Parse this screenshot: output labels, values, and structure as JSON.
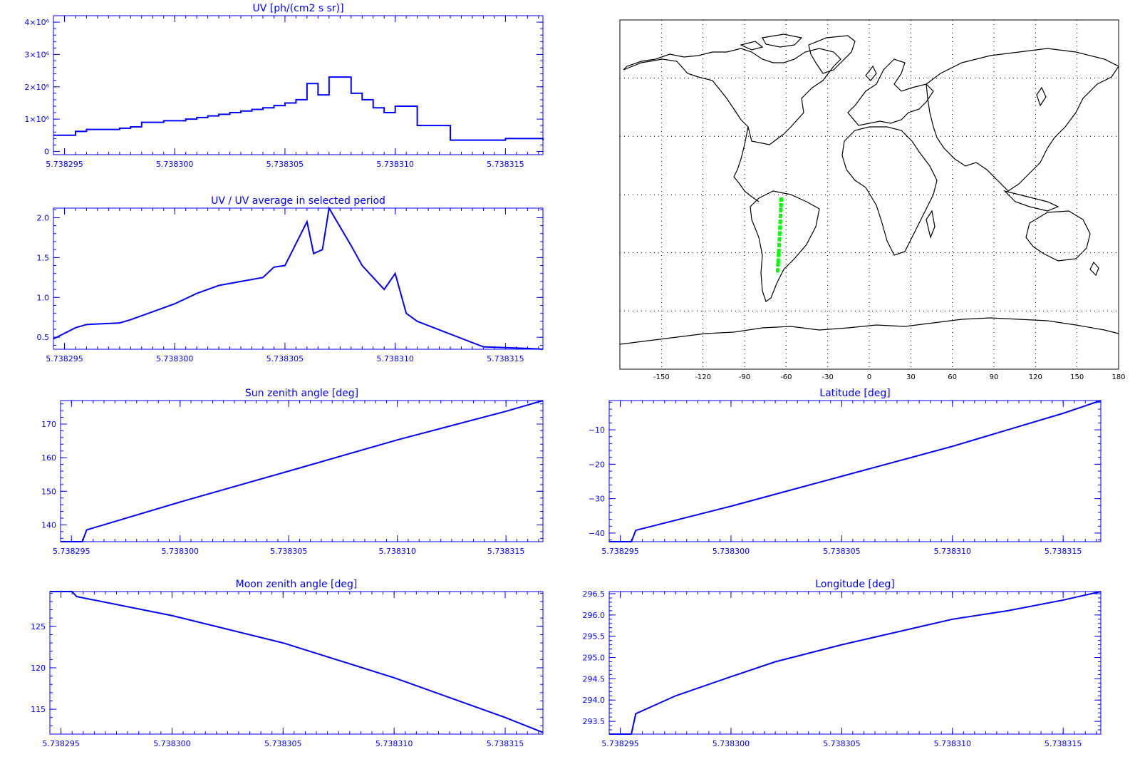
{
  "colors": {
    "axis": "#0000ff",
    "line": "#0000ff",
    "map": "#000000",
    "track": "#00ff00"
  },
  "chart_data": [
    {
      "id": "uv",
      "type": "line",
      "step": true,
      "title": "UV [ph/(cm2 s sr)]",
      "xlim": [
        5.7382945,
        5.7383167
      ],
      "ylim": [
        -100000,
        4200000
      ],
      "xticks": [
        5.738295,
        5.7383,
        5.738305,
        5.73831,
        5.738315
      ],
      "xtick_labels": [
        "5.738295",
        "5.738300",
        "5.738305",
        "5.738310",
        "5.738315"
      ],
      "yticks": [
        0,
        1000000,
        2000000,
        3000000,
        4000000
      ],
      "ytick_labels": [
        "0",
        "1×10⁶",
        "2×10⁶",
        "3×10⁶",
        "4×10⁶"
      ],
      "x": [
        5.7382945,
        5.7382955,
        5.738296,
        5.7382975,
        5.738298,
        5.7382985,
        5.7382995,
        5.7383005,
        5.738301,
        5.7383015,
        5.738302,
        5.7383025,
        5.738303,
        5.7383035,
        5.738304,
        5.7383045,
        5.738305,
        5.7383055,
        5.738306,
        5.7383065,
        5.738307,
        5.738308,
        5.7383085,
        5.738309,
        5.7383095,
        5.73831,
        5.738311,
        5.7383125,
        5.738315,
        5.7383167
      ],
      "y": [
        500000,
        620000,
        680000,
        720000,
        760000,
        900000,
        950000,
        1000000,
        1050000,
        1100000,
        1150000,
        1200000,
        1250000,
        1300000,
        1350000,
        1420000,
        1500000,
        1600000,
        2100000,
        1750000,
        2300000,
        1800000,
        1600000,
        1350000,
        1200000,
        1400000,
        800000,
        350000,
        400000,
        350000
      ]
    },
    {
      "id": "uv_ratio",
      "type": "line",
      "title": "UV / UV average in selected period",
      "xlim": [
        5.7382945,
        5.7383167
      ],
      "ylim": [
        0.35,
        2.12
      ],
      "xticks": [
        5.738295,
        5.7383,
        5.738305,
        5.73831,
        5.738315
      ],
      "xtick_labels": [
        "5.738295",
        "5.738300",
        "5.738305",
        "5.738310",
        "5.738315"
      ],
      "yticks": [
        0.5,
        1.0,
        1.5,
        2.0
      ],
      "ytick_labels": [
        "0.5",
        "1.0",
        "1.5",
        "2.0"
      ],
      "x": [
        5.7382945,
        5.7382955,
        5.738296,
        5.7382975,
        5.738298,
        5.738299,
        5.7383,
        5.738301,
        5.738302,
        5.738303,
        5.738304,
        5.7383045,
        5.738305,
        5.738306,
        5.7383063,
        5.7383067,
        5.738307,
        5.738308,
        5.7383085,
        5.738309,
        5.7383095,
        5.73831,
        5.7383105,
        5.738311,
        5.738314,
        5.738316,
        5.7383167
      ],
      "y": [
        0.48,
        0.62,
        0.66,
        0.68,
        0.72,
        0.82,
        0.92,
        1.05,
        1.15,
        1.2,
        1.25,
        1.38,
        1.4,
        1.95,
        1.55,
        1.6,
        2.12,
        1.65,
        1.4,
        1.25,
        1.1,
        1.3,
        0.8,
        0.7,
        0.38,
        0.36,
        0.35
      ]
    },
    {
      "id": "sza",
      "type": "line",
      "title": "Sun zenith angle [deg]",
      "xlim": [
        5.7382945,
        5.7383167
      ],
      "ylim": [
        135,
        177
      ],
      "xticks": [
        5.738295,
        5.7383,
        5.738305,
        5.73831,
        5.738315
      ],
      "xtick_labels": [
        "5.738295",
        "5.738300",
        "5.738305",
        "5.738310",
        "5.738315"
      ],
      "yticks": [
        140,
        150,
        160,
        170
      ],
      "ytick_labels": [
        "140",
        "150",
        "160",
        "170"
      ],
      "x": [
        5.7382945,
        5.7382955,
        5.7382957,
        5.7383,
        5.738305,
        5.73831,
        5.738315,
        5.7383167
      ],
      "y": [
        135,
        135,
        138.5,
        146.8,
        156,
        165.3,
        173.8,
        177
      ]
    },
    {
      "id": "mza",
      "type": "line",
      "title": "Moon zenith angle [deg]",
      "xlim": [
        5.7382945,
        5.7383167
      ],
      "ylim": [
        112,
        129.2
      ],
      "xticks": [
        5.738295,
        5.7383,
        5.738305,
        5.73831,
        5.738315
      ],
      "xtick_labels": [
        "5.738295",
        "5.738300",
        "5.738305",
        "5.738310",
        "5.738315"
      ],
      "yticks": [
        115,
        120,
        125
      ],
      "ytick_labels": [
        "115",
        "120",
        "125"
      ],
      "x": [
        5.7382945,
        5.7382955,
        5.7382957,
        5.7383,
        5.738305,
        5.73831,
        5.738315,
        5.7383167
      ],
      "y": [
        129.2,
        129.2,
        128.6,
        126.3,
        123,
        118.8,
        114,
        112.2
      ]
    },
    {
      "id": "lat",
      "type": "line",
      "title": "Latitude [deg]",
      "xlim": [
        5.7382945,
        5.7383167
      ],
      "ylim": [
        -42.5,
        -1.5
      ],
      "xticks": [
        5.738295,
        5.7383,
        5.738305,
        5.73831,
        5.738315
      ],
      "xtick_labels": [
        "5.738295",
        "5.738300",
        "5.738305",
        "5.738310",
        "5.738315"
      ],
      "yticks": [
        -40,
        -30,
        -20,
        -10
      ],
      "ytick_labels": [
        "−40",
        "−30",
        "−20",
        "−10"
      ],
      "x": [
        5.7382945,
        5.7382955,
        5.7382957,
        5.7383,
        5.738305,
        5.73831,
        5.738315,
        5.7383167
      ],
      "y": [
        -42.5,
        -42.5,
        -39.2,
        -32.2,
        -23.5,
        -14.8,
        -5.2,
        -1.5
      ]
    },
    {
      "id": "lon",
      "type": "line",
      "title": "Longitude [deg]",
      "xlim": [
        5.7382945,
        5.7383167
      ],
      "ylim": [
        293.2,
        296.55
      ],
      "xticks": [
        5.738295,
        5.7383,
        5.738305,
        5.73831,
        5.738315
      ],
      "xtick_labels": [
        "5.738295",
        "5.738300",
        "5.738305",
        "5.738310",
        "5.738315"
      ],
      "yticks": [
        293.5,
        294.0,
        294.5,
        295.0,
        295.5,
        296.0,
        296.5
      ],
      "ytick_labels": [
        "293.5",
        "294.0",
        "294.5",
        "295.0",
        "295.5",
        "296.0",
        "296.5"
      ],
      "x": [
        5.7382945,
        5.7382955,
        5.7382957,
        5.7382975,
        5.7383,
        5.738302,
        5.738305,
        5.7383075,
        5.73831,
        5.7383125,
        5.738315,
        5.7383167
      ],
      "y": [
        293.2,
        293.2,
        293.68,
        294.1,
        294.55,
        294.9,
        295.3,
        295.6,
        295.9,
        296.1,
        296.35,
        296.55
      ]
    }
  ],
  "map": {
    "xticks": [
      -150,
      -120,
      -90,
      -60,
      -30,
      0,
      30,
      60,
      90,
      120,
      150,
      180
    ],
    "xtick_labels": [
      "-150",
      "-120",
      "-90",
      "-60",
      "-30",
      "0",
      "30",
      "60",
      "90",
      "120",
      "150",
      "180"
    ],
    "track": {
      "lon": [
        -63.5,
        -63.8,
        -64.2,
        -64.6,
        -65.0,
        -65.4,
        -65.8,
        -66.2
      ],
      "lat": [
        -1.5,
        -7,
        -13,
        -19,
        -25,
        -30,
        -35,
        -41
      ]
    }
  }
}
